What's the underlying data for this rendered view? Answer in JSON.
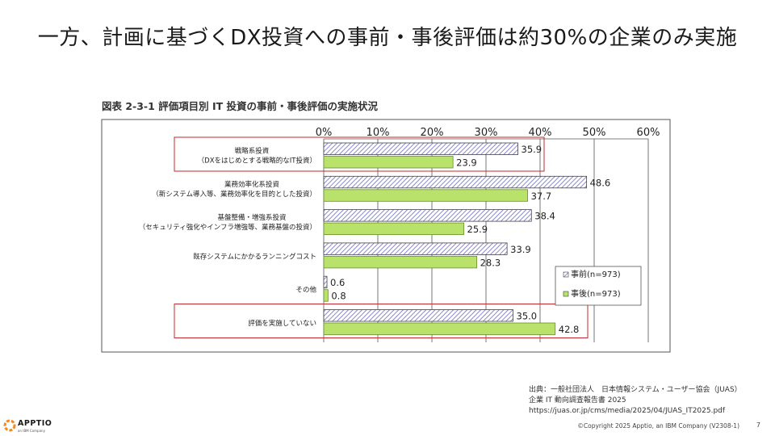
{
  "slide": {
    "title": "一方、計画に基づくDX投資への事前・事後評価は約30%の企業のみ実施",
    "page_number": "7",
    "copyright": "©Copyright 2025 Apptio, an IBM Company (V2308-1)"
  },
  "logo": {
    "name": "APPTIO",
    "sub": "an IBM Company",
    "icon": "apptio-logo-icon"
  },
  "source": {
    "line1": "出典：一般社団法人　日本情報システム・ユーザー協会（JUAS）",
    "line2": "企業 IT 動向調査報告書 2025",
    "line3": "https://juas.or.jp/cms/media/2025/04/JUAS_IT2025.pdf"
  },
  "chart_data": {
    "type": "bar",
    "orientation": "horizontal",
    "title": "図表 2-3-1  評価項目別  IT 投資の事前・事後評価の実施状況",
    "categories": [
      [
        "戦略系投資",
        "（DXをはじめとする戦略的なIT投資）"
      ],
      [
        "業務効率化系投資",
        "（新システム導入等、業務効率化を目的とした投資）"
      ],
      [
        "基盤整備・増強系投資",
        "（セキュリティ強化やインフラ増強等、業務基盤の投資）"
      ],
      [
        "既存システムにかかるランニングコスト"
      ],
      [
        "その他"
      ],
      [
        "評価を実施していない"
      ]
    ],
    "series": [
      {
        "name": "事前(n=973)",
        "values": [
          35.9,
          48.6,
          38.4,
          33.9,
          0.6,
          35.0
        ],
        "color": "#c9c9ea",
        "pattern": "hatch"
      },
      {
        "name": "事後(n=973)",
        "values": [
          23.9,
          37.7,
          25.9,
          28.3,
          0.8,
          42.8
        ],
        "color": "#b8e26a",
        "pattern": "solid"
      }
    ],
    "xlim": [
      0,
      60
    ],
    "ticks": [
      "0%",
      "10%",
      "20%",
      "30%",
      "40%",
      "50%",
      "60%"
    ],
    "grid": true,
    "legend_position": "right-bottom",
    "highlighted_categories": [
      0,
      5
    ],
    "highlight_color": "#c0282d"
  }
}
